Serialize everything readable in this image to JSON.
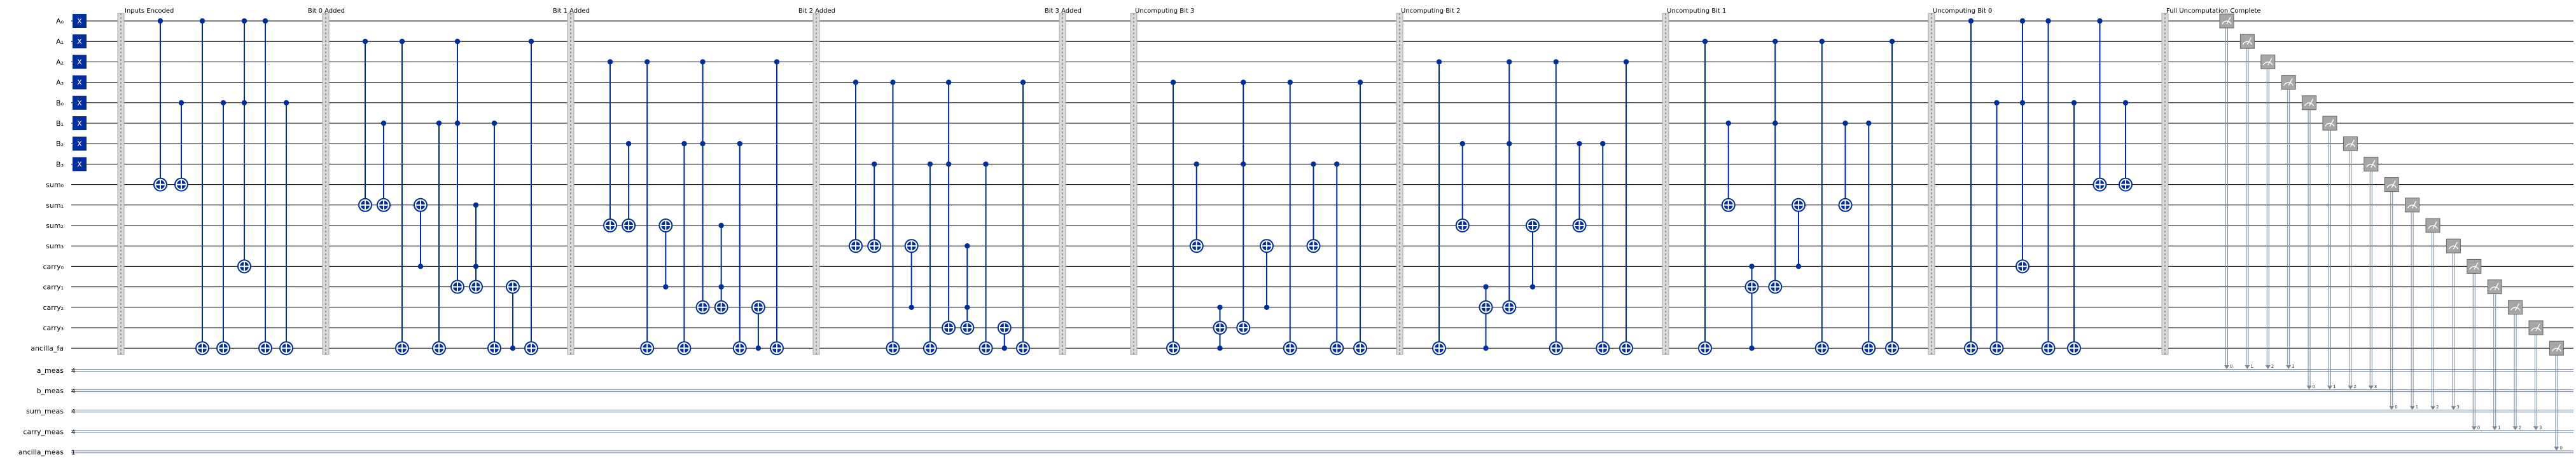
{
  "qubits": [
    "A₀",
    "A₁",
    "A₂",
    "A₃",
    "B₀",
    "B₁",
    "B₂",
    "B₃",
    "sum₀",
    "sum₁",
    "sum₂",
    "sum₃",
    "carry₀",
    "carry₁",
    "carry₂",
    "carry₃",
    "ancilla_fa"
  ],
  "classical": [
    {
      "label": "a_meas",
      "size": "4"
    },
    {
      "label": "b_meas",
      "size": "4"
    },
    {
      "label": "sum_meas",
      "size": "4"
    },
    {
      "label": "carry_meas",
      "size": "4"
    },
    {
      "label": "ancilla_meas",
      "size": "1"
    }
  ],
  "x_gate_label": "X",
  "sections": [
    {
      "label": "Inputs Encoded"
    },
    {
      "label": "Bit 0 Added"
    },
    {
      "label": "Bit 1 Added"
    },
    {
      "label": "Bit 2 Added"
    },
    {
      "label": "Bit 3 Added"
    },
    {
      "label": "Uncomputing Bit 3"
    },
    {
      "label": "Uncomputing Bit 2"
    },
    {
      "label": "Uncomputing Bit 1"
    },
    {
      "label": "Uncomputing Bit 0"
    },
    {
      "label": "Full Uncomputation Complete"
    }
  ],
  "colors": {
    "gate": "#002d9c",
    "barrier": "#d9d9d9",
    "measure": "#a6a6a6",
    "classical_wire": "#778899"
  },
  "icons": {
    "x_gate": "x-gate-icon",
    "cnot_target": "oplus-target-icon",
    "control": "control-dot-icon",
    "measure": "meter-icon"
  },
  "gates": [
    {
      "c": [
        0
      ],
      "t": 8
    },
    {
      "c": [
        4
      ],
      "t": 8
    },
    {
      "c": [
        0
      ],
      "t": 16
    },
    {
      "c": [
        4
      ],
      "t": 16
    },
    {
      "c": [
        0,
        4
      ],
      "t": 12
    },
    {
      "c": [
        0
      ],
      "t": 16
    },
    {
      "c": [
        4
      ],
      "t": 16
    },
    {
      "c": [
        1
      ],
      "t": 9
    },
    {
      "c": [
        5
      ],
      "t": 9
    },
    {
      "c": [
        1
      ],
      "t": 16
    },
    {
      "c": [
        12
      ],
      "t": 9
    },
    {
      "c": [
        5
      ],
      "t": 16
    },
    {
      "c": [
        1,
        5
      ],
      "t": 13
    },
    {
      "c": [
        9,
        12
      ],
      "t": 13
    },
    {
      "c": [
        5
      ],
      "t": 16
    },
    {
      "c": [
        16
      ],
      "t": 13
    },
    {
      "c": [
        1
      ],
      "t": 16
    },
    {
      "c": [
        2
      ],
      "t": 10
    },
    {
      "c": [
        6
      ],
      "t": 10
    },
    {
      "c": [
        2
      ],
      "t": 16
    },
    {
      "c": [
        13
      ],
      "t": 10
    },
    {
      "c": [
        6
      ],
      "t": 16
    },
    {
      "c": [
        2,
        6
      ],
      "t": 14
    },
    {
      "c": [
        10,
        13
      ],
      "t": 14
    },
    {
      "c": [
        6
      ],
      "t": 16
    },
    {
      "c": [
        16
      ],
      "t": 14
    },
    {
      "c": [
        2
      ],
      "t": 16
    },
    {
      "c": [
        3
      ],
      "t": 11
    },
    {
      "c": [
        7
      ],
      "t": 11
    },
    {
      "c": [
        3
      ],
      "t": 16
    },
    {
      "c": [
        14
      ],
      "t": 11
    },
    {
      "c": [
        7
      ],
      "t": 16
    },
    {
      "c": [
        3,
        7
      ],
      "t": 15
    },
    {
      "c": [
        11,
        14
      ],
      "t": 15
    },
    {
      "c": [
        7
      ],
      "t": 16
    },
    {
      "c": [
        16
      ],
      "t": 15
    },
    {
      "c": [
        3
      ],
      "t": 16
    },
    {
      "c": [
        3
      ],
      "t": 16
    },
    {
      "c": [
        7
      ],
      "t": 11
    },
    {
      "c": [
        14,
        16
      ],
      "t": 15
    },
    {
      "c": [
        3,
        7
      ],
      "t": 15
    },
    {
      "c": [
        14
      ],
      "t": 11
    },
    {
      "c": [
        3
      ],
      "t": 16
    },
    {
      "c": [
        7
      ],
      "t": 11
    },
    {
      "c": [
        7
      ],
      "t": 16
    },
    {
      "c": [
        3
      ],
      "t": 16
    },
    {
      "c": [
        2
      ],
      "t": 16
    },
    {
      "c": [
        6
      ],
      "t": 10
    },
    {
      "c": [
        13,
        16
      ],
      "t": 14
    },
    {
      "c": [
        2,
        6
      ],
      "t": 14
    },
    {
      "c": [
        13
      ],
      "t": 10
    },
    {
      "c": [
        2
      ],
      "t": 16
    },
    {
      "c": [
        6
      ],
      "t": 10
    },
    {
      "c": [
        6
      ],
      "t": 16
    },
    {
      "c": [
        2
      ],
      "t": 16
    },
    {
      "c": [
        1
      ],
      "t": 16
    },
    {
      "c": [
        5
      ],
      "t": 9
    },
    {
      "c": [
        12,
        16
      ],
      "t": 13
    },
    {
      "c": [
        1,
        5
      ],
      "t": 13
    },
    {
      "c": [
        12
      ],
      "t": 9
    },
    {
      "c": [
        1
      ],
      "t": 16
    },
    {
      "c": [
        5
      ],
      "t": 9
    },
    {
      "c": [
        5
      ],
      "t": 16
    },
    {
      "c": [
        1
      ],
      "t": 16
    },
    {
      "c": [
        0
      ],
      "t": 16
    },
    {
      "c": [
        4
      ],
      "t": 16
    },
    {
      "c": [
        0,
        4
      ],
      "t": 12
    },
    {
      "c": [
        0
      ],
      "t": 16
    },
    {
      "c": [
        4
      ],
      "t": 16
    },
    {
      "c": [
        0
      ],
      "t": 8
    },
    {
      "c": [
        4
      ],
      "t": 8
    }
  ]
}
